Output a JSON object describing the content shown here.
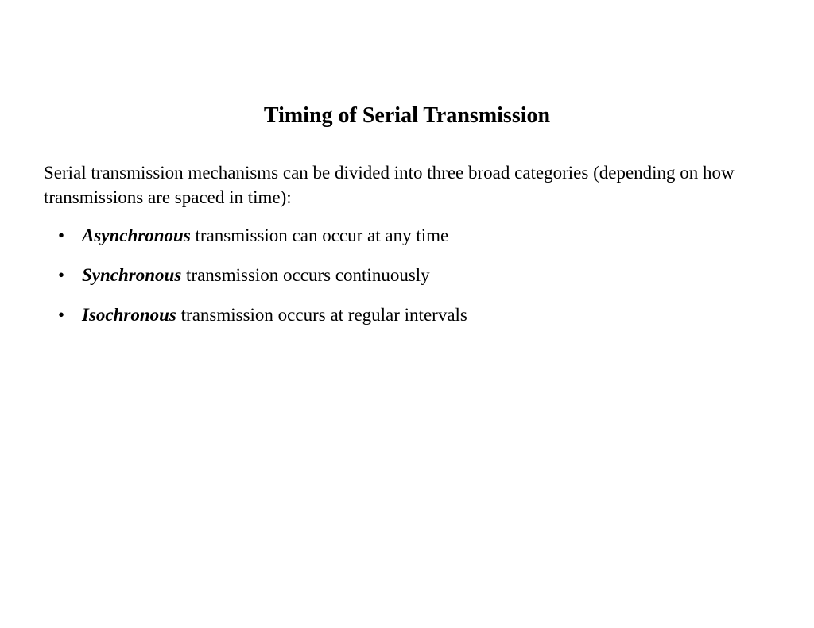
{
  "title": "Timing of Serial Transmission",
  "intro": "Serial transmission mechanisms can be divided into three broad categories (depending on how transmissions are spaced in time):",
  "bullets": [
    {
      "term": "Asynchronous",
      "rest": " transmission can occur at any time"
    },
    {
      "term": "Synchronous",
      "rest": " transmission occurs continuously"
    },
    {
      "term": "Isochronous",
      "rest": " transmission occurs at regular intervals"
    }
  ],
  "styling": {
    "background_color": "#ffffff",
    "text_color": "#000000",
    "font_family": "Times New Roman",
    "title_fontsize": 28,
    "title_fontweight": "bold",
    "body_fontsize": 23,
    "bullet_char": "•",
    "term_style": {
      "font_weight": "bold",
      "font_style": "italic"
    }
  }
}
